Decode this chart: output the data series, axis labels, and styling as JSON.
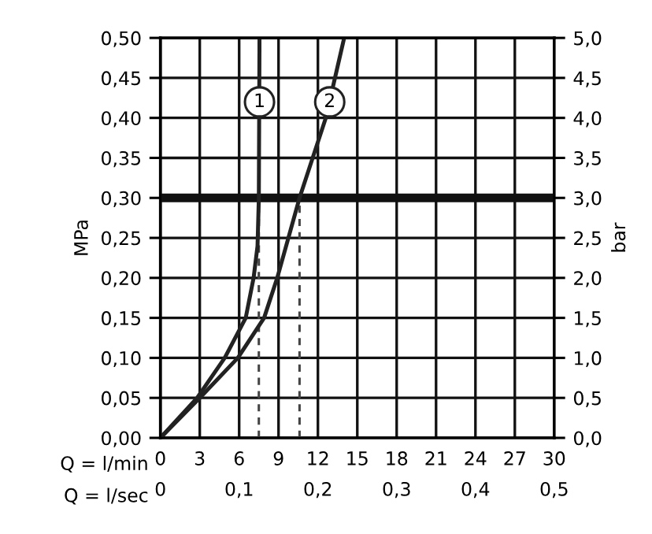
{
  "chart_data": {
    "type": "line",
    "xlabel": "Q = l/min",
    "x2label": "Q = l/sec",
    "ylabel": "MPa",
    "y2label": "bar",
    "xlim": [
      0,
      30
    ],
    "xticks": [
      0,
      3,
      6,
      9,
      12,
      15,
      18,
      21,
      24,
      27,
      30
    ],
    "x2lim": [
      0,
      0.5
    ],
    "x2ticks": [
      0,
      {
        "value": 0.1,
        "label": "0,1"
      },
      {
        "value": 0.2,
        "label": "0,2"
      },
      {
        "value": 0.3,
        "label": "0,3"
      },
      {
        "value": 0.4,
        "label": "0,4"
      },
      {
        "value": 0.5,
        "label": "0,5"
      }
    ],
    "ylim": [
      0,
      0.5
    ],
    "yticks": [
      {
        "value": 0,
        "label": "0,00"
      },
      {
        "value": 0.05,
        "label": "0,05"
      },
      {
        "value": 0.1,
        "label": "0,10"
      },
      {
        "value": 0.15,
        "label": "0,15"
      },
      {
        "value": 0.2,
        "label": "0,20"
      },
      {
        "value": 0.25,
        "label": "0,25"
      },
      {
        "value": 0.3,
        "label": "0,30"
      },
      {
        "value": 0.35,
        "label": "0,35"
      },
      {
        "value": 0.4,
        "label": "0,40"
      },
      {
        "value": 0.45,
        "label": "0,45"
      },
      {
        "value": 0.5,
        "label": "0,50"
      }
    ],
    "y2lim": [
      0,
      5
    ],
    "y2ticks": [
      {
        "value": 0,
        "label": "0,0"
      },
      {
        "value": 0.5,
        "label": "0,5"
      },
      {
        "value": 1,
        "label": "1,0"
      },
      {
        "value": 1.5,
        "label": "1,5"
      },
      {
        "value": 2,
        "label": "2,0"
      },
      {
        "value": 2.5,
        "label": "2,5"
      },
      {
        "value": 3,
        "label": "3,0"
      },
      {
        "value": 3.5,
        "label": "3,5"
      },
      {
        "value": 4,
        "label": "4,0"
      },
      {
        "value": 4.5,
        "label": "4,5"
      },
      {
        "value": 5,
        "label": "5,0"
      }
    ],
    "grid": true,
    "marker": "none",
    "line_style": "solid",
    "series": [
      {
        "color": "#222222",
        "x": [
          0,
          2.8,
          4.9,
          6.5,
          7.1,
          7.4,
          7.5,
          7.55
        ],
        "values": [
          0,
          0.05,
          0.1,
          0.15,
          0.2,
          0.24,
          0.3,
          0.5
        ]
      },
      {
        "color": "#222222",
        "x": [
          0,
          3.0,
          5.9,
          7.9,
          8.9,
          10.6,
          12.6,
          13.3,
          14.0
        ],
        "values": [
          0,
          0.05,
          0.1,
          0.15,
          0.2,
          0.3,
          0.4,
          0.45,
          0.5
        ]
      }
    ],
    "ref_lines": [
      {
        "axis": "y",
        "value": 0.3,
        "color": "#111111",
        "line_style": "solid"
      },
      {
        "axis": "x",
        "value": 7.5,
        "color": "#444444",
        "line_style": "dashed"
      },
      {
        "axis": "x",
        "value": 10.6,
        "color": "#444444",
        "line_style": "dashed"
      }
    ],
    "annotations": [
      {
        "text": "1",
        "x": 7.55,
        "y": 0.42
      },
      {
        "text": "2",
        "x": 12.9,
        "y": 0.42
      }
    ]
  }
}
